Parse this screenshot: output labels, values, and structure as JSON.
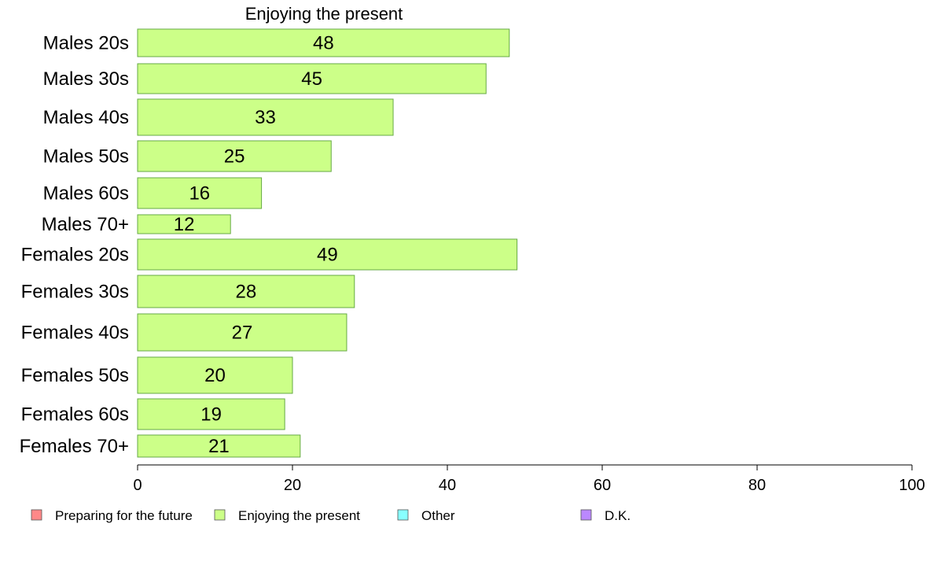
{
  "chart_data": {
    "type": "bar",
    "orientation": "horizontal",
    "title": "Enjoying the present",
    "xlabel": "",
    "ylabel": "",
    "xlim": [
      0,
      100
    ],
    "xticks": [
      0,
      20,
      40,
      60,
      80,
      100
    ],
    "categories": [
      "Males 20s",
      "Males 30s",
      "Males 40s",
      "Males 50s",
      "Males 60s",
      "Males 70+",
      "Females 20s",
      "Females 30s",
      "Females 40s",
      "Females 50s",
      "Females 60s",
      "Females 70+"
    ],
    "values": [
      48,
      45,
      33,
      25,
      16,
      12,
      49,
      28,
      27,
      20,
      19,
      21
    ],
    "bar_color": "#ccff88",
    "bar_edge_color": "#66aa44",
    "grid": false,
    "legend_position": "bottom",
    "legend": [
      {
        "label": "Preparing for the future",
        "color": "#ff8888"
      },
      {
        "label": "Enjoying the present",
        "color": "#ccff88"
      },
      {
        "label": "Other",
        "color": "#88ffff"
      },
      {
        "label": "D.K.",
        "color": "#bb88ff"
      }
    ]
  }
}
